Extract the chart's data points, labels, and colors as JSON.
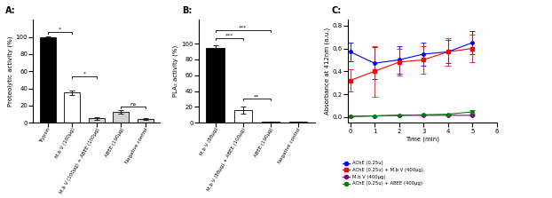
{
  "panel_A": {
    "categories": [
      "Trypsin",
      "M.b V (100µg)",
      "M.b V (100µg) + ABEE (100µg)",
      "ABEE (100µg)",
      "Negative control"
    ],
    "values": [
      100,
      35,
      5,
      13,
      4
    ],
    "errors": [
      1,
      2.5,
      1.5,
      2,
      1
    ],
    "colors": [
      "black",
      "white",
      "lightgray",
      "lightgray",
      "lightgray"
    ],
    "ylabel": "Proteolytic activity (%)",
    "ylim": [
      0,
      120
    ],
    "yticks": [
      0,
      20,
      40,
      60,
      80,
      100
    ]
  },
  "panel_B": {
    "categories": [
      "M.b V (88µg)",
      "M.b V (88µg) + ABEE (100µg)",
      "ABEE (100µg)",
      "Negative control"
    ],
    "values": [
      95,
      16,
      1,
      1
    ],
    "errors": [
      3,
      4,
      0.5,
      0.5
    ],
    "colors": [
      "black",
      "white",
      "lightgray",
      "lightgray"
    ],
    "ylabel": "PLA₂ activity (%)",
    "ylim": [
      0,
      130
    ],
    "yticks": [
      0,
      20,
      40,
      60,
      80,
      100
    ]
  },
  "panel_C": {
    "time": [
      0,
      1,
      2,
      3,
      4,
      5
    ],
    "series": [
      {
        "label": "AChE (0.25u)",
        "values": [
          0.57,
          0.47,
          0.5,
          0.55,
          0.57,
          0.65
        ],
        "errors": [
          0.08,
          0.14,
          0.12,
          0.1,
          0.1,
          0.1
        ],
        "color": "#0000FF",
        "marker": "o"
      },
      {
        "label": "AChE (0.25u) + M.b V (400µg)",
        "values": [
          0.32,
          0.4,
          0.48,
          0.5,
          0.57,
          0.6
        ],
        "errors": [
          0.1,
          0.22,
          0.12,
          0.12,
          0.12,
          0.12
        ],
        "color": "#FF0000",
        "marker": "s"
      },
      {
        "label": "M.b V (400µg)",
        "values": [
          0.005,
          0.01,
          0.015,
          0.015,
          0.015,
          0.015
        ],
        "errors": [
          0.003,
          0.003,
          0.003,
          0.003,
          0.003,
          0.003
        ],
        "color": "#800080",
        "marker": "o"
      },
      {
        "label": "AChE (0.25u) + ABEE (400µg)",
        "values": [
          0.005,
          0.01,
          0.015,
          0.02,
          0.025,
          0.045
        ],
        "errors": [
          0.003,
          0.003,
          0.003,
          0.005,
          0.008,
          0.012
        ],
        "color": "#008000",
        "marker": "o"
      }
    ],
    "xlabel": "Time (min)",
    "ylabel": "Absorbance at 412nm (a.u.)",
    "xlim": [
      -0.1,
      6
    ],
    "ylim": [
      -0.05,
      0.85
    ],
    "yticks": [
      0.0,
      0.2,
      0.4,
      0.6,
      0.8
    ]
  }
}
